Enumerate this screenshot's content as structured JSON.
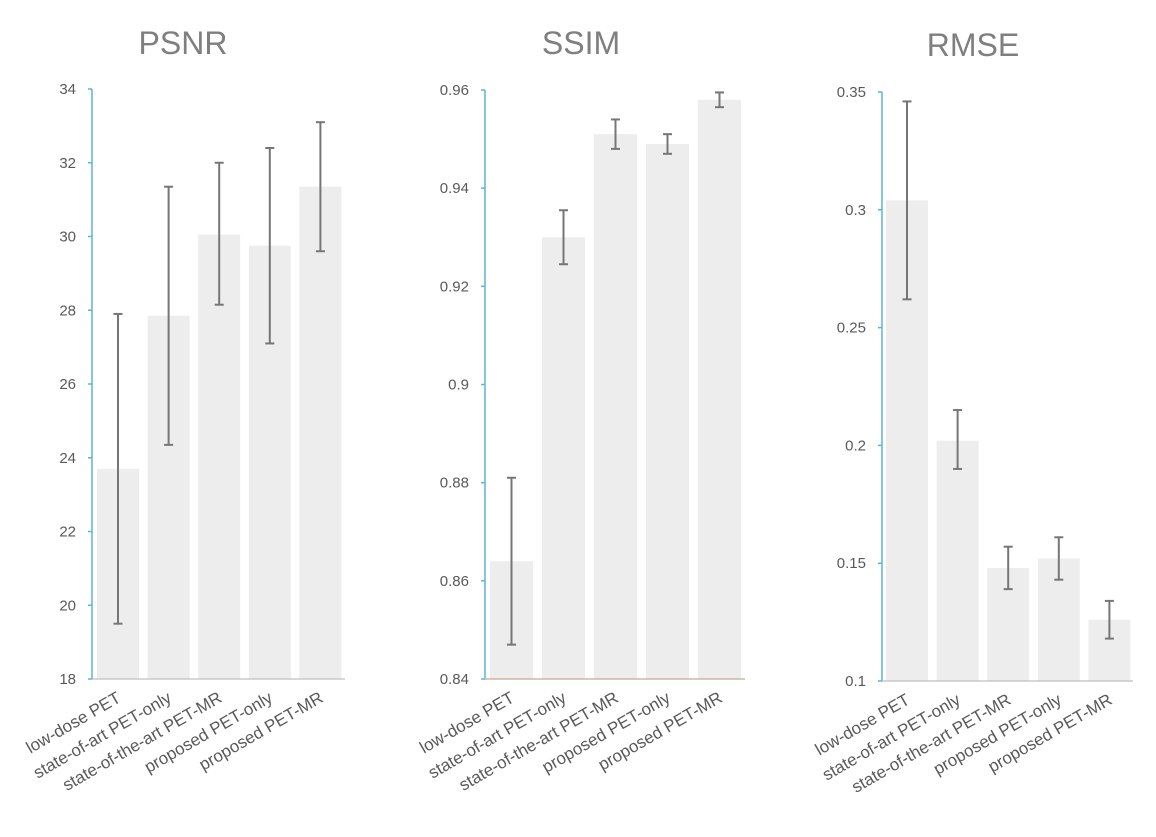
{
  "chart_data": [
    {
      "type": "bar",
      "title": "PSNR",
      "categories": [
        "low-dose PET",
        "state-of-art PET-only",
        "state-of-the-art PET-MR",
        "proposed PET-only",
        "proposed PET-MR"
      ],
      "values": [
        23.7,
        27.85,
        30.05,
        29.75,
        31.35
      ],
      "error_low": [
        19.5,
        24.35,
        28.15,
        27.1,
        29.6
      ],
      "error_high": [
        27.9,
        31.35,
        32.0,
        32.4,
        33.1
      ],
      "ylim": [
        18,
        34
      ],
      "yticks": [
        "18",
        "20",
        "22",
        "24",
        "26",
        "28",
        "30",
        "32",
        "34"
      ],
      "ytick_values": [
        18,
        20,
        22,
        24,
        26,
        28,
        30,
        32,
        34
      ],
      "xlabel": "",
      "ylabel": "",
      "grid": false,
      "x_axis_color": "#bfbfbf"
    },
    {
      "type": "bar",
      "title": "SSIM",
      "categories": [
        "low-dose PET",
        "state-of-art PET-only",
        "state-of-the-art PET-MR",
        "proposed PET-only",
        "proposed PET-MR"
      ],
      "values": [
        0.864,
        0.93,
        0.951,
        0.949,
        0.958
      ],
      "error_low": [
        0.847,
        0.9245,
        0.948,
        0.947,
        0.9565
      ],
      "error_high": [
        0.881,
        0.9355,
        0.954,
        0.951,
        0.9595
      ],
      "ylim": [
        0.84,
        0.96
      ],
      "yticks": [
        "0.84",
        "0.86",
        "0.88",
        "0.9",
        "0.92",
        "0.94",
        "0.96"
      ],
      "ytick_values": [
        0.84,
        0.86,
        0.88,
        0.9,
        0.92,
        0.94,
        0.96
      ],
      "xlabel": "",
      "ylabel": "",
      "grid": false,
      "x_axis_color": "#c9a98f"
    },
    {
      "type": "bar",
      "title": "RMSE",
      "categories": [
        "low-dose PET",
        "state-of-art PET-only",
        "state-of-the-art PET-MR",
        "proposed PET-only",
        "proposed PET-MR"
      ],
      "values": [
        0.304,
        0.202,
        0.148,
        0.152,
        0.126
      ],
      "error_low": [
        0.262,
        0.19,
        0.139,
        0.143,
        0.118
      ],
      "error_high": [
        0.346,
        0.215,
        0.157,
        0.161,
        0.134
      ],
      "ylim": [
        0.1,
        0.35
      ],
      "yticks": [
        "0.1",
        "0.15",
        "0.2",
        "0.25",
        "0.3",
        "0.35"
      ],
      "ytick_values": [
        0.1,
        0.15,
        0.2,
        0.25,
        0.3,
        0.35
      ],
      "xlabel": "",
      "ylabel": "",
      "grid": false,
      "x_axis_color": "#bfbfbf"
    }
  ]
}
